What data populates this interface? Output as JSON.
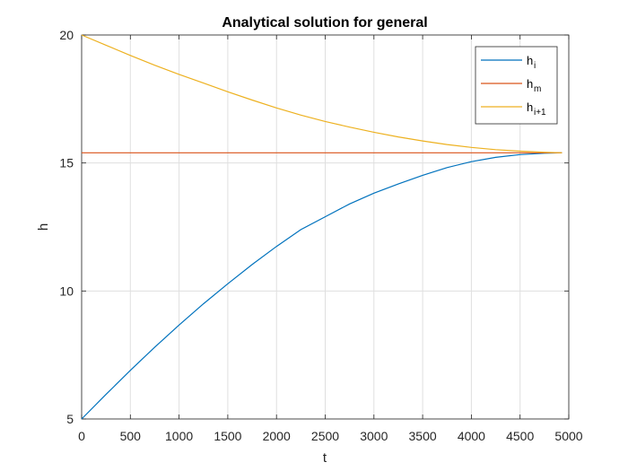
{
  "chart_data": {
    "type": "line",
    "title": "Analytical solution for general",
    "xlabel": "t",
    "ylabel": "h",
    "xlim": [
      0,
      5000
    ],
    "ylim": [
      5,
      20
    ],
    "grid": true,
    "legend_position": "top-right",
    "x_ticks": [
      "0",
      "500",
      "1000",
      "1500",
      "2000",
      "2500",
      "3000",
      "3500",
      "4000",
      "4500",
      "5000"
    ],
    "y_ticks": [
      "5",
      "10",
      "15",
      "20"
    ],
    "x": [
      0,
      250,
      500,
      750,
      1000,
      1250,
      1500,
      1750,
      2000,
      2250,
      2500,
      2750,
      3000,
      3250,
      3500,
      3750,
      4000,
      4250,
      4500,
      4750,
      4930
    ],
    "series": [
      {
        "name": "h_i",
        "legend_main": "h",
        "legend_sub": "i",
        "color": "#0072BD",
        "values": [
          5.0,
          5.96,
          6.9,
          7.8,
          8.67,
          9.5,
          10.28,
          11.03,
          11.74,
          12.4,
          12.9,
          13.4,
          13.82,
          14.18,
          14.52,
          14.82,
          15.05,
          15.22,
          15.33,
          15.38,
          15.4
        ]
      },
      {
        "name": "h_m",
        "legend_main": "h",
        "legend_sub": "m",
        "color": "#D95319",
        "values": [
          15.4,
          15.4,
          15.4,
          15.4,
          15.4,
          15.4,
          15.4,
          15.4,
          15.4,
          15.4,
          15.4,
          15.4,
          15.4,
          15.4,
          15.4,
          15.4,
          15.4,
          15.4,
          15.4,
          15.4,
          15.4
        ]
      },
      {
        "name": "h_i+1",
        "legend_main": "h",
        "legend_sub": "i+1",
        "color": "#EDB120",
        "values": [
          20.0,
          19.6,
          19.2,
          18.82,
          18.46,
          18.12,
          17.78,
          17.46,
          17.15,
          16.87,
          16.62,
          16.4,
          16.2,
          16.02,
          15.86,
          15.72,
          15.61,
          15.52,
          15.46,
          15.42,
          15.4
        ]
      }
    ]
  }
}
